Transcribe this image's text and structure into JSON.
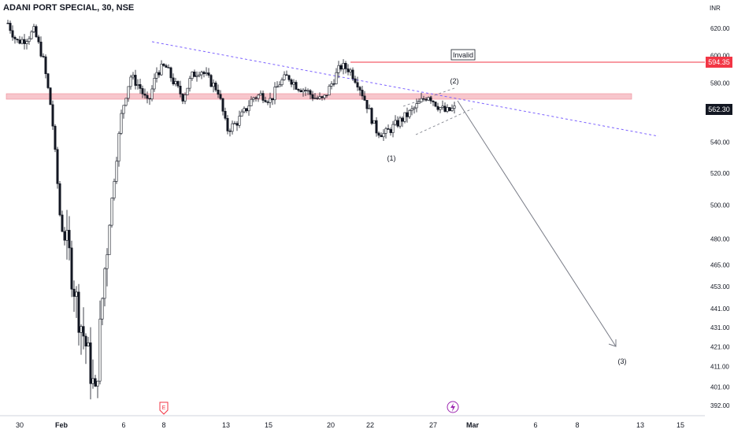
{
  "header": {
    "symbol_title": "ADANI PORT SPECIAL, 30, NSE"
  },
  "price_scale": {
    "currency": "INR",
    "ticks": [
      "620.00",
      "600.00",
      "580.00",
      "560.00",
      "540.00",
      "520.00",
      "500.00",
      "480.00",
      "465.00",
      "453.00",
      "441.00",
      "431.00",
      "421.00",
      "411.00",
      "401.00",
      "392.00"
    ],
    "resistance_tag": "594.35",
    "last_price_tag": "562.30"
  },
  "time_axis": {
    "labels": [
      "30",
      "Feb",
      "6",
      "8",
      "13",
      "15",
      "20",
      "22",
      "27",
      "Mar",
      "6",
      "8",
      "13",
      "15"
    ]
  },
  "annotations": {
    "invalid_label": "Invalid",
    "wave_1": "(1)",
    "wave_2": "(2)",
    "wave_3": "(3)"
  },
  "events": {
    "earnings_icon": "E",
    "dividend_icon": "lightning-icon"
  },
  "colors": {
    "candle": "#131722",
    "resistance_line": "#f23645",
    "zone_fill": "#f7c6cc",
    "trendline": "#7b61ff",
    "projection": "#787b86",
    "event_red": "#f23645",
    "event_purple": "#9c27b0"
  },
  "chart_data": {
    "type": "candlestick",
    "title": "ADANI PORT SPECIAL, 30, NSE",
    "ylabel": "INR",
    "yscale": "log",
    "ylim": [
      389,
      650
    ],
    "x_labels": [
      "30",
      "Feb",
      "6",
      "8",
      "13",
      "15",
      "20",
      "22",
      "27",
      "Mar",
      "6",
      "8",
      "13",
      "15"
    ],
    "key_levels": {
      "invalid_level": 594.35,
      "last_price": 562.3,
      "supply_zone": [
        566,
        570
      ]
    },
    "approx_path_close": [
      624,
      610,
      612,
      618,
      598,
      560,
      490,
      470,
      440,
      420,
      395,
      460,
      510,
      560,
      585,
      578,
      565,
      588,
      592,
      580,
      570,
      585,
      590,
      582,
      575,
      548,
      552,
      560,
      570,
      572,
      568,
      580,
      585,
      578,
      575,
      570,
      568,
      580,
      592,
      590,
      580,
      565,
      548,
      545,
      550,
      555,
      560,
      566,
      572,
      565,
      560,
      562.3
    ],
    "projection_target": 421
  }
}
